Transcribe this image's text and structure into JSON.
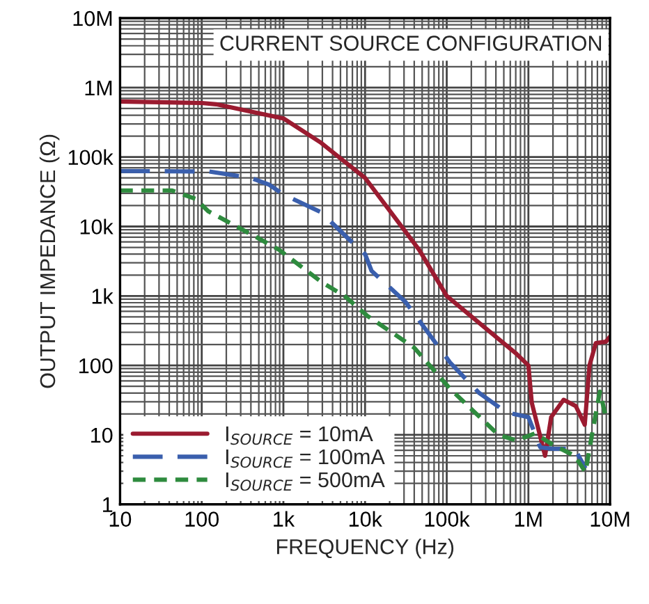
{
  "chart_data": {
    "type": "line",
    "title": "CURRENT SOURCE CONFIGURATION",
    "xlabel": "FREQUENCY (Hz)",
    "ylabel": "OUTPUT IMPEDANCE (Ω)",
    "log": "xy",
    "grid": true,
    "legend": "bottom left",
    "marker": "none",
    "xlim": [
      10,
      10000000
    ],
    "ylim": [
      1,
      10000000
    ],
    "xticks": [
      10,
      100,
      {
        "value": 1000,
        "label": "1k"
      },
      {
        "value": 10000,
        "label": "10k"
      },
      {
        "value": 100000,
        "label": "100k"
      },
      {
        "value": 1000000,
        "label": "1M"
      },
      {
        "value": 10000000,
        "label": "10M"
      }
    ],
    "yticks": [
      1,
      10,
      100,
      {
        "value": 1000,
        "label": "1k"
      },
      {
        "value": 10000,
        "label": "10k"
      },
      {
        "value": 100000,
        "label": "100k"
      },
      {
        "value": 1000000,
        "label": "1M"
      },
      {
        "value": 10000000,
        "label": "10M"
      }
    ],
    "series": [
      {
        "name": "I$_{SOURCE}$ = 10mA",
        "color": "#9b1b30",
        "line_style": "solid",
        "x": [
          10,
          100,
          150,
          1000,
          2900,
          10000,
          46000,
          100000,
          700000,
          1000000,
          1100000,
          1600000,
          1900000,
          2700000,
          3800000,
          4900000,
          5600000,
          6700000,
          8900000,
          10000000
        ],
        "values": [
          630000,
          600000,
          575000,
          360000,
          160000,
          50000,
          4600,
          1000,
          150,
          100,
          29,
          5,
          18,
          32,
          26,
          14,
          100,
          210,
          220,
          260
        ]
      },
      {
        "name": "I$_{SOURCE}$ = 100mA",
        "color": "#3a5fad",
        "line_style": "dashed",
        "x": [
          10,
          100,
          123,
          400,
          670,
          1000,
          2900,
          6300,
          10000,
          12000,
          31000,
          110000,
          250000,
          540000,
          1000000,
          1400000,
          2000000,
          3700000,
          5000000
        ],
        "values": [
          63000,
          62000,
          62000,
          50000,
          40000,
          29000,
          16000,
          6600,
          4000,
          2300,
          830,
          110,
          40,
          21,
          18,
          6.6,
          6.3,
          6.3,
          3.3
        ]
      },
      {
        "name": "I$_{SOURCE}$ = 500mA",
        "color": "#2e8b3e",
        "line_style": "dotted",
        "x": [
          10,
          43,
          84,
          120,
          450,
          890,
          2900,
          5600,
          10600,
          40000,
          110000,
          430000,
          720000,
          1200000,
          2000000,
          3700000,
          5000000,
          6000000,
          7500000,
          9000000
        ],
        "values": [
          33000,
          33000,
          25000,
          16600,
          7200,
          4600,
          1600,
          1000,
          520,
          180,
          46,
          10,
          8.3,
          10.5,
          7.2,
          5,
          2.9,
          10,
          42,
          17
        ]
      }
    ]
  }
}
